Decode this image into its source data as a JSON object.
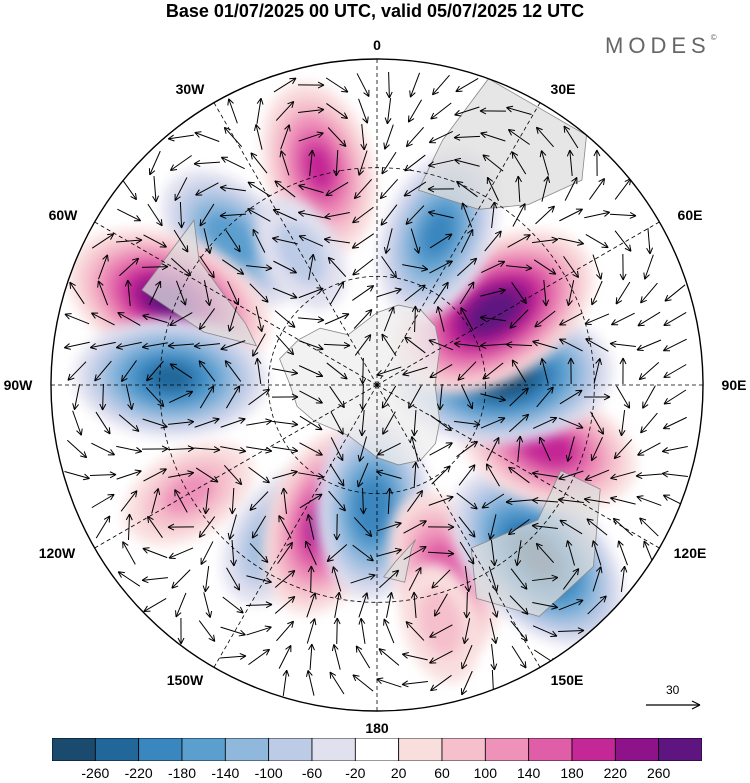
{
  "title": "Base 01/07/2025 00 UTC, valid 05/07/2025 12 UTC",
  "brand": "MODES",
  "brand_mark": "©",
  "longitude_labels": {
    "0": "0",
    "30E": "30E",
    "60E": "60E",
    "90E": "90E",
    "120E": "120E",
    "150E": "150E",
    "180": "180",
    "150W": "150W",
    "120W": "120W",
    "90W": "90W",
    "60W": "60W",
    "30W": "30W"
  },
  "reference_vector_label": "30",
  "colorbar": {
    "labels": [
      "-260",
      "-220",
      "-180",
      "-140",
      "-100",
      "-60",
      "-20",
      "20",
      "60",
      "100",
      "140",
      "180",
      "220",
      "260"
    ],
    "colors": [
      "#1a4a6e",
      "#22679a",
      "#3a86bf",
      "#5b9fcf",
      "#8fb8dc",
      "#bccbe6",
      "#e0e0ef",
      "#ffffff",
      "#f9dede",
      "#f5bfcc",
      "#ee92b9",
      "#e05ea8",
      "#c42796",
      "#8e138a",
      "#5e1580"
    ]
  },
  "colors": {
    "continent": "#dedede",
    "antarctica": "#eeeeee"
  },
  "anomaly_centers": [
    {
      "lon": 345,
      "lat": -28,
      "value": 180
    },
    {
      "lon": 315,
      "lat": -33,
      "value": -160
    },
    {
      "lon": 292,
      "lat": -28,
      "value": 260
    },
    {
      "lon": 272,
      "lat": -33,
      "value": -220
    },
    {
      "lon": 240,
      "lat": -30,
      "value": 100
    },
    {
      "lon": 213,
      "lat": -40,
      "value": -120
    },
    {
      "lon": 200,
      "lat": -50,
      "value": 220
    },
    {
      "lon": 182,
      "lat": -56,
      "value": -200
    },
    {
      "lon": 160,
      "lat": -35,
      "value": 160
    },
    {
      "lon": 137,
      "lat": -25,
      "value": -260
    },
    {
      "lon": 110,
      "lat": -40,
      "value": 200
    },
    {
      "lon": 86,
      "lat": -55,
      "value": -280
    },
    {
      "lon": 58,
      "lat": -52,
      "value": 280
    },
    {
      "lon": 22,
      "lat": -45,
      "value": -180
    },
    {
      "lon": 165,
      "lat": -22,
      "value": 60
    },
    {
      "lon": 330,
      "lat": -48,
      "value": -60
    }
  ]
}
